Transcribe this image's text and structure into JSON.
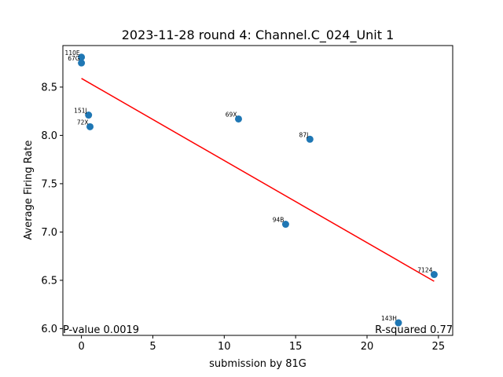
{
  "chart_data": {
    "type": "scatter",
    "title": "2023-11-28 round 4: Channel.C_024_Unit 1",
    "xlabel": "submission by 81G",
    "ylabel": "Average Firing Rate",
    "xlim": [
      -1.3,
      26.0
    ],
    "ylim": [
      5.93,
      8.93
    ],
    "xticks": [
      0,
      5,
      10,
      15,
      20,
      25
    ],
    "xtick_labels": [
      "0",
      "5",
      "10",
      "15",
      "20",
      "25"
    ],
    "yticks": [
      6.0,
      6.5,
      7.0,
      7.5,
      8.0,
      8.5
    ],
    "ytick_labels": [
      "6.0",
      "6.5",
      "7.0",
      "7.5",
      "8.0",
      "8.5"
    ],
    "grid": false,
    "point_color": "#1f77b4",
    "fit_color": "#ff0000",
    "points": [
      {
        "x": 0.0,
        "y": 8.81,
        "label": "110E"
      },
      {
        "x": 0.0,
        "y": 8.75,
        "label": "67G"
      },
      {
        "x": 0.5,
        "y": 8.21,
        "label": "151J"
      },
      {
        "x": 0.6,
        "y": 8.09,
        "label": "72X"
      },
      {
        "x": 11.0,
        "y": 8.17,
        "label": "69X"
      },
      {
        "x": 16.0,
        "y": 7.96,
        "label": "87J"
      },
      {
        "x": 14.3,
        "y": 7.08,
        "label": "94B"
      },
      {
        "x": 24.7,
        "y": 6.56,
        "label": "7124"
      },
      {
        "x": 22.2,
        "y": 6.06,
        "label": "143H"
      }
    ],
    "fit_line": {
      "x": [
        0.0,
        24.7
      ],
      "y": [
        8.59,
        6.49
      ]
    },
    "annotations": {
      "pvalue": "P-value 0.0019",
      "rsquared": "R-squared 0.77"
    }
  }
}
